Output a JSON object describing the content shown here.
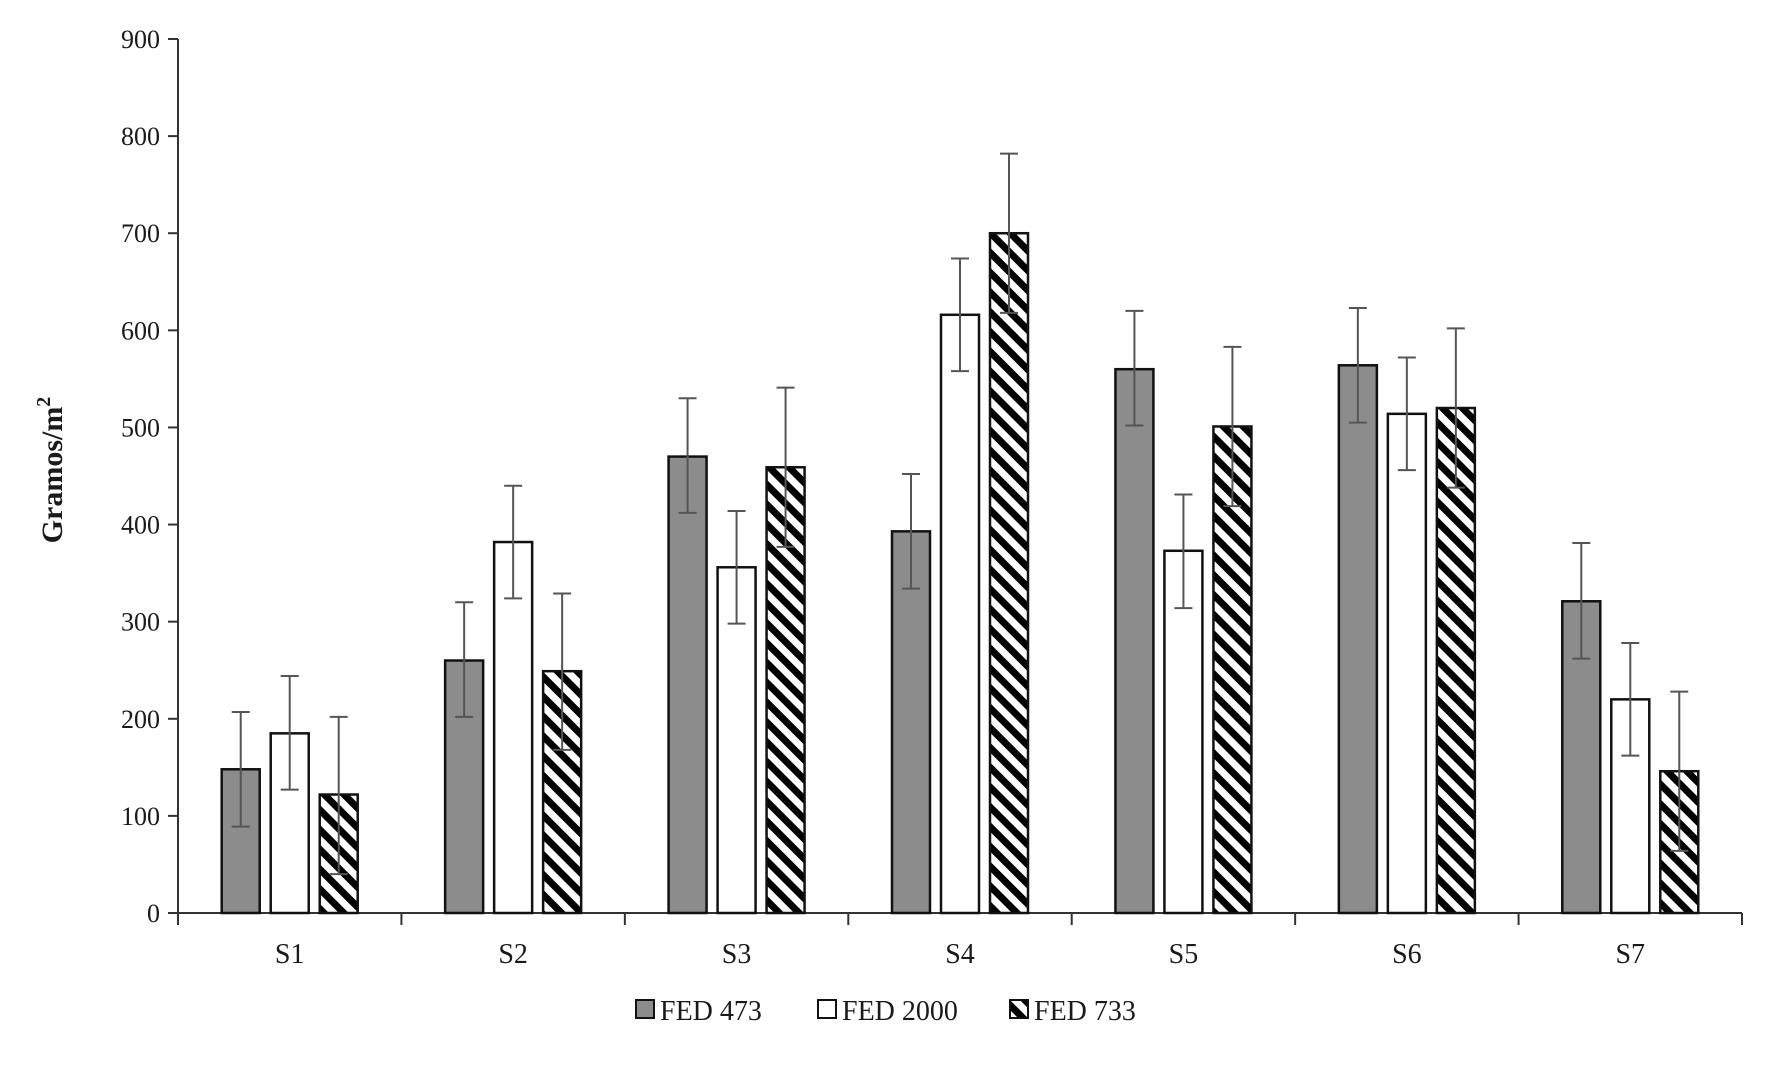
{
  "chart_data": {
    "type": "bar",
    "ylabel": "Gramos/m",
    "ylabel_superscript": "2",
    "xlabel": "",
    "ylim": [
      0,
      900
    ],
    "yticks": [
      0,
      100,
      200,
      300,
      400,
      500,
      600,
      700,
      800,
      900
    ],
    "grid": false,
    "legend_position": "bottom-center",
    "categories": [
      "S1",
      "S2",
      "S3",
      "S4",
      "S5",
      "S6",
      "S7"
    ],
    "series": [
      {
        "name": "FED 473",
        "fill": "gray",
        "color": "#8c8c8c",
        "values": [
          148,
          260,
          470,
          393,
          560,
          564,
          321
        ],
        "error_upper": [
          207,
          320,
          530,
          452,
          620,
          623,
          381
        ],
        "error_lower": [
          89,
          202,
          412,
          334,
          502,
          505,
          262
        ]
      },
      {
        "name": "FED 2000",
        "fill": "white",
        "color": "#ffffff",
        "values": [
          185,
          382,
          356,
          616,
          373,
          514,
          220
        ],
        "error_upper": [
          244,
          440,
          414,
          674,
          431,
          572,
          278
        ],
        "error_lower": [
          127,
          324,
          298,
          558,
          314,
          456,
          162
        ]
      },
      {
        "name": "FED 733",
        "fill": "diagonal-hatch",
        "color": "#000000",
        "values": [
          122,
          249,
          459,
          700,
          501,
          520,
          146
        ],
        "error_upper": [
          202,
          329,
          541,
          782,
          583,
          602,
          228
        ],
        "error_lower": [
          40,
          168,
          377,
          618,
          419,
          438,
          64
        ]
      }
    ]
  }
}
